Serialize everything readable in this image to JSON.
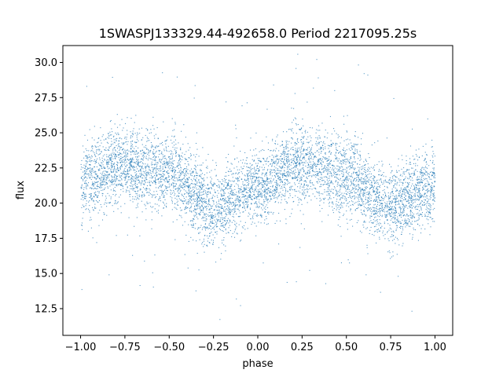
{
  "chart_data": {
    "type": "scatter",
    "title": "1SWASPJ133329.44-492658.0 Period 2217095.25s",
    "xlabel": "phase",
    "ylabel": "flux",
    "xlim": [
      -1.1,
      1.1
    ],
    "ylim": [
      10.6,
      31.2
    ],
    "x_ticks": [
      -1.0,
      -0.75,
      -0.5,
      -0.25,
      0.0,
      0.25,
      0.5,
      0.75,
      1.0
    ],
    "x_tick_labels": [
      "−1.00",
      "−0.75",
      "−0.50",
      "−0.25",
      "0.00",
      "0.25",
      "0.50",
      "0.75",
      "1.00"
    ],
    "y_ticks": [
      12.5,
      15.0,
      17.5,
      20.0,
      22.5,
      25.0,
      27.5,
      30.0
    ],
    "y_tick_labels": [
      "12.5",
      "15.0",
      "17.5",
      "20.0",
      "22.5",
      "25.0",
      "27.5",
      "30.0"
    ],
    "grid": false,
    "point_color": "#1f77b4",
    "phase_profile": {
      "x": [
        -1.0,
        -0.75,
        -0.5,
        -0.25,
        0.0,
        0.25,
        0.5,
        0.75,
        1.0
      ],
      "y": [
        21.5,
        22.8,
        22.0,
        19.8,
        21.2,
        22.8,
        22.0,
        19.8,
        21.2
      ]
    }
  }
}
